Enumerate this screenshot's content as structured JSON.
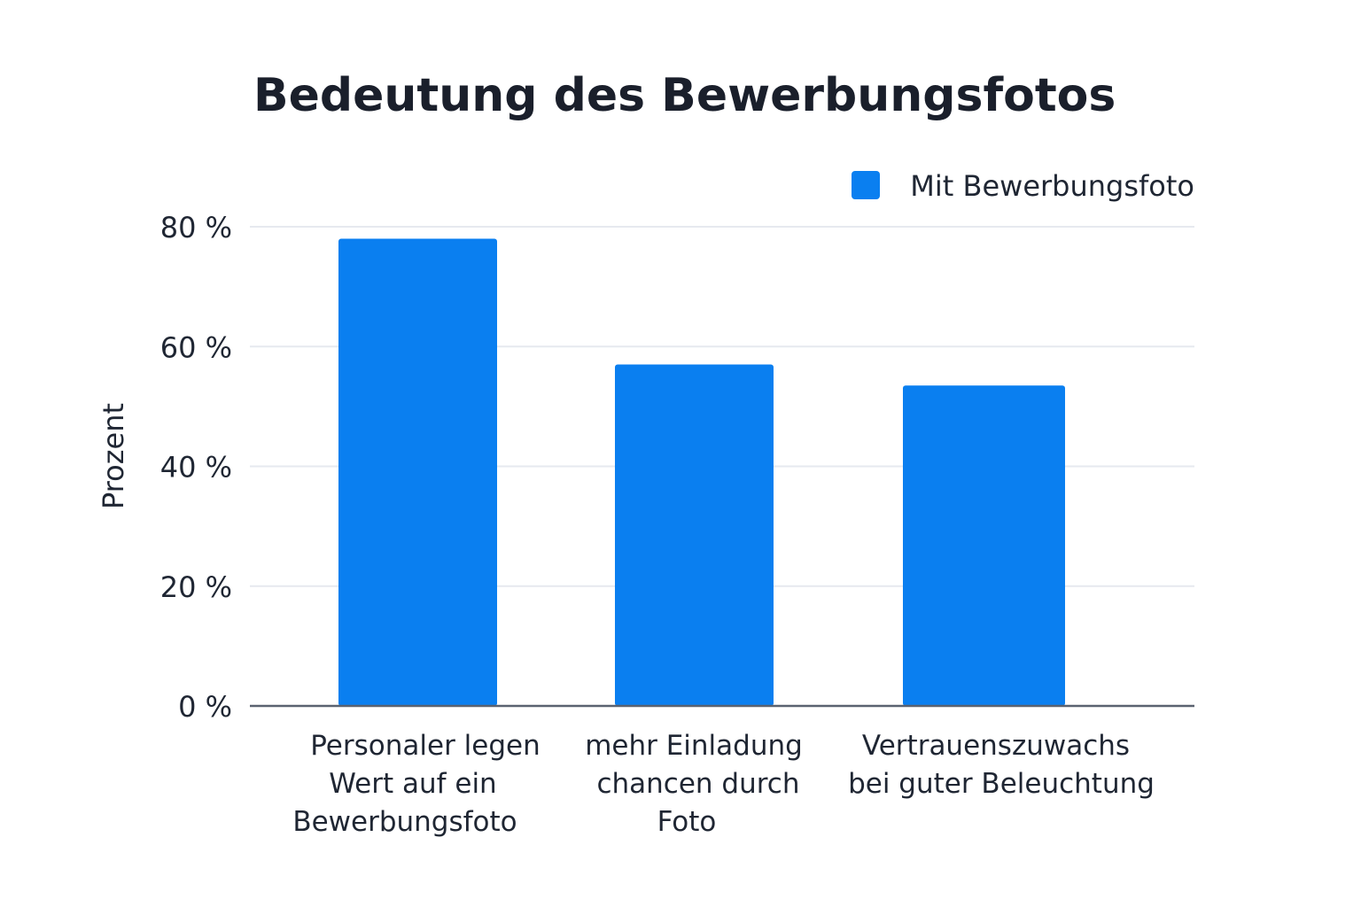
{
  "chart_data": {
    "type": "bar",
    "title": "Bedeutung des Bewerbungsfotos",
    "xlabel": "",
    "ylabel": "Prozent",
    "ylim": [
      0,
      80
    ],
    "yticks": [
      0,
      20,
      40,
      60,
      80
    ],
    "ytick_labels": [
      "0 %",
      "20 %",
      "40 %",
      "60 %",
      "80 %"
    ],
    "grid": true,
    "legend_position": "top-right",
    "categories": [
      [
        "Personaler legen",
        "Wert auf ein",
        "Bewerbungsfoto"
      ],
      [
        "mehr Einladung",
        "chancen durch",
        "Foto"
      ],
      [
        "Vertrauenszuwachs",
        "bei guter Beleuchtung"
      ]
    ],
    "series": [
      {
        "name": "Mit Bewerbungsfoto",
        "color": "#0a7ff0",
        "values": [
          78,
          57,
          53.5
        ]
      }
    ]
  }
}
